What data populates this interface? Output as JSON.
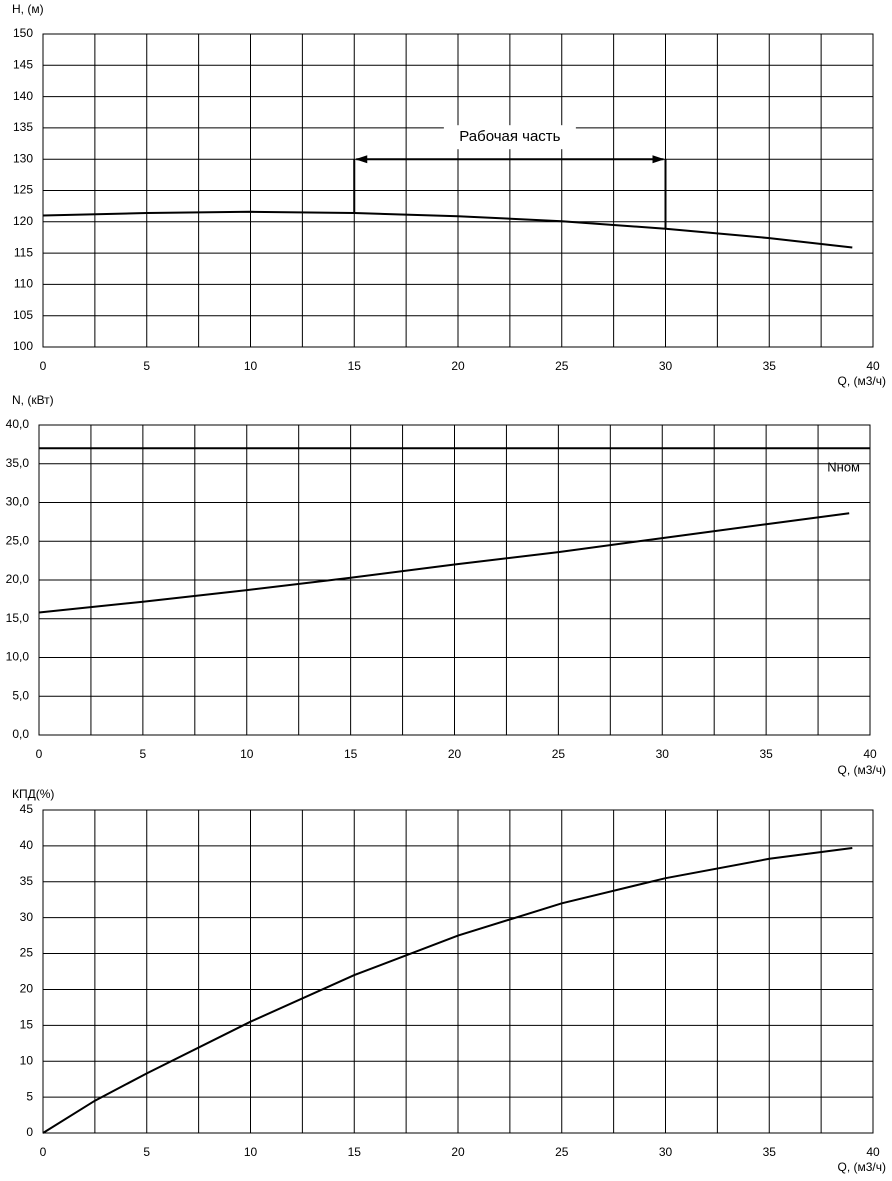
{
  "chart_data": [
    {
      "type": "line",
      "ylabel": "H, (м)",
      "xlabel": "Q, (м3/ч)",
      "x": [
        0,
        5,
        10,
        15,
        20,
        25,
        30,
        35,
        39
      ],
      "series": [
        {
          "color": "#000000",
          "values": [
            121,
            121.4,
            121.6,
            121.4,
            120.9,
            120.1,
            118.9,
            117.4,
            115.9
          ]
        }
      ],
      "xlim": [
        0,
        40
      ],
      "xticks": [
        0,
        5,
        10,
        15,
        20,
        25,
        30,
        35,
        40
      ],
      "xminor": [
        2.5,
        7.5,
        12.5,
        17.5,
        22.5,
        27.5,
        32.5,
        37.5
      ],
      "ylim": [
        100,
        150
      ],
      "yticks": [
        100,
        105,
        110,
        115,
        120,
        125,
        130,
        135,
        140,
        145,
        150
      ],
      "grid": true,
      "annotation": {
        "text": "Рабочая часть",
        "x_range": [
          15,
          30
        ],
        "y": 130
      }
    },
    {
      "type": "line",
      "ylabel": "N, (кВт)",
      "xlabel": "Q, (м3/ч)",
      "x": [
        0,
        5,
        10,
        15,
        20,
        25,
        30,
        35,
        39
      ],
      "series": [
        {
          "color": "#000000",
          "values": [
            15.8,
            17.2,
            18.7,
            20.3,
            22.0,
            23.6,
            25.4,
            27.2,
            28.6
          ]
        }
      ],
      "xlim": [
        0,
        40
      ],
      "xticks": [
        0,
        5,
        10,
        15,
        20,
        25,
        30,
        35,
        40
      ],
      "xminor": [
        2.5,
        7.5,
        12.5,
        17.5,
        22.5,
        27.5,
        32.5,
        37.5
      ],
      "ylim": [
        0,
        40
      ],
      "yticks": [
        {
          "value": 0,
          "label": "0,0"
        },
        {
          "value": 5,
          "label": "5,0"
        },
        {
          "value": 10,
          "label": "10,0"
        },
        {
          "value": 15,
          "label": "15,0"
        },
        {
          "value": 20,
          "label": "20,0"
        },
        {
          "value": 25,
          "label": "25,0"
        },
        {
          "value": 30,
          "label": "30,0"
        },
        {
          "value": 35,
          "label": "35,0"
        },
        {
          "value": 40,
          "label": "40,0"
        }
      ],
      "grid": true,
      "hline": {
        "value": 37,
        "label": "Nном"
      }
    },
    {
      "type": "line",
      "ylabel": "КПД(%)",
      "xlabel": "Q, (м3/ч)",
      "x": [
        0,
        2.5,
        5,
        10,
        15,
        20,
        25,
        30,
        35,
        39
      ],
      "series": [
        {
          "color": "#000000",
          "values": [
            0,
            4.5,
            8.3,
            15.5,
            22,
            27.5,
            32,
            35.5,
            38.2,
            39.7
          ]
        }
      ],
      "xlim": [
        0,
        40
      ],
      "xticks": [
        0,
        5,
        10,
        15,
        20,
        25,
        30,
        35,
        40
      ],
      "xminor": [
        2.5,
        7.5,
        12.5,
        17.5,
        22.5,
        27.5,
        32.5,
        37.5
      ],
      "ylim": [
        0,
        45
      ],
      "yticks": [
        0,
        5,
        10,
        15,
        20,
        25,
        30,
        35,
        40,
        45
      ],
      "grid": true
    }
  ]
}
